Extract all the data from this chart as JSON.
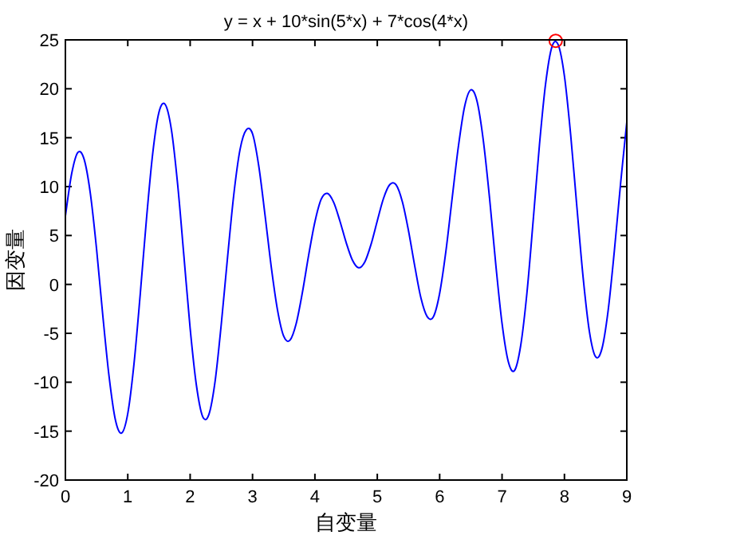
{
  "chart_data": {
    "type": "line",
    "title": "y = x + 10*sin(5*x) + 7*cos(4*x)",
    "xlabel": "自变量",
    "ylabel": "因变量",
    "xlim": [
      0,
      9
    ],
    "xticks": [
      0,
      1,
      2,
      3,
      4,
      5,
      6,
      7,
      8,
      9
    ],
    "ylim": [
      -20,
      25
    ],
    "yticks": [
      -20,
      -15,
      -10,
      -5,
      0,
      5,
      10,
      15,
      20,
      25
    ],
    "grid": false,
    "series": [
      {
        "color": "#0000ff",
        "marker": "none",
        "x": [
          0,
          0.1,
          0.2,
          0.3,
          0.4,
          0.5,
          0.6,
          0.7,
          0.8,
          0.9,
          1.0,
          1.1,
          1.2,
          1.3,
          1.4,
          1.5,
          1.6,
          1.7,
          1.8,
          1.9,
          2.0,
          2.1,
          2.2,
          2.3,
          2.4,
          2.5,
          2.6,
          2.7,
          2.8,
          2.9,
          3.0,
          3.1,
          3.2,
          3.3,
          3.4,
          3.5,
          3.6,
          3.7,
          3.8,
          3.9,
          4.0,
          4.1,
          4.2,
          4.3,
          4.4,
          4.5,
          4.6,
          4.7,
          4.8,
          4.9,
          5.0,
          5.1,
          5.2,
          5.3,
          5.4,
          5.5,
          5.6,
          5.7,
          5.8,
          5.9,
          6.0,
          6.1,
          6.2,
          6.3,
          6.4,
          6.5,
          6.6,
          6.7,
          6.8,
          6.9,
          7.0,
          7.1,
          7.2,
          7.3,
          7.4,
          7.5,
          7.6,
          7.7,
          7.8,
          7.9,
          8.0,
          8.1,
          8.2,
          8.3,
          8.4,
          8.5,
          8.6,
          8.7,
          8.8,
          8.9,
          9.0
        ],
        "values": [
          7.0,
          11.3,
          13.5,
          12.8,
          9.3,
          3.6,
          -3.2,
          -9.4,
          -13.8,
          -15.2,
          -13.2,
          -8.1,
          -1.0,
          6.7,
          13.4,
          17.6,
          18.4,
          15.8,
          10.2,
          2.9,
          -4.5,
          -10.3,
          -13.5,
          -13.3,
          -9.9,
          -4.0,
          2.8,
          9.2,
          13.8,
          15.8,
          15.4,
          12.1,
          7.1,
          1.8,
          -2.6,
          -5.3,
          -5.7,
          -4.0,
          -0.8,
          3.0,
          6.4,
          8.7,
          9.3,
          8.4,
          6.5,
          4.3,
          2.5,
          1.7,
          2.3,
          4.1,
          6.5,
          8.8,
          10.2,
          10.2,
          8.5,
          5.5,
          1.9,
          -1.4,
          -3.3,
          -3.3,
          -0.9,
          3.4,
          8.8,
          14.1,
          18.2,
          19.9,
          18.7,
          14.7,
          8.8,
          2.0,
          -4.0,
          -7.9,
          -8.8,
          -6.2,
          -0.8,
          6.6,
          14.3,
          20.6,
          24.3,
          24.5,
          21.3,
          15.3,
          7.9,
          0.7,
          -4.8,
          -7.4,
          -6.6,
          -2.7,
          3.4,
          10.3,
          16.6
        ]
      },
      {
        "type": "scatter",
        "color": "#ff0000",
        "marker": "circle",
        "x": [
          7.86
        ],
        "values": [
          24.9
        ]
      }
    ]
  }
}
